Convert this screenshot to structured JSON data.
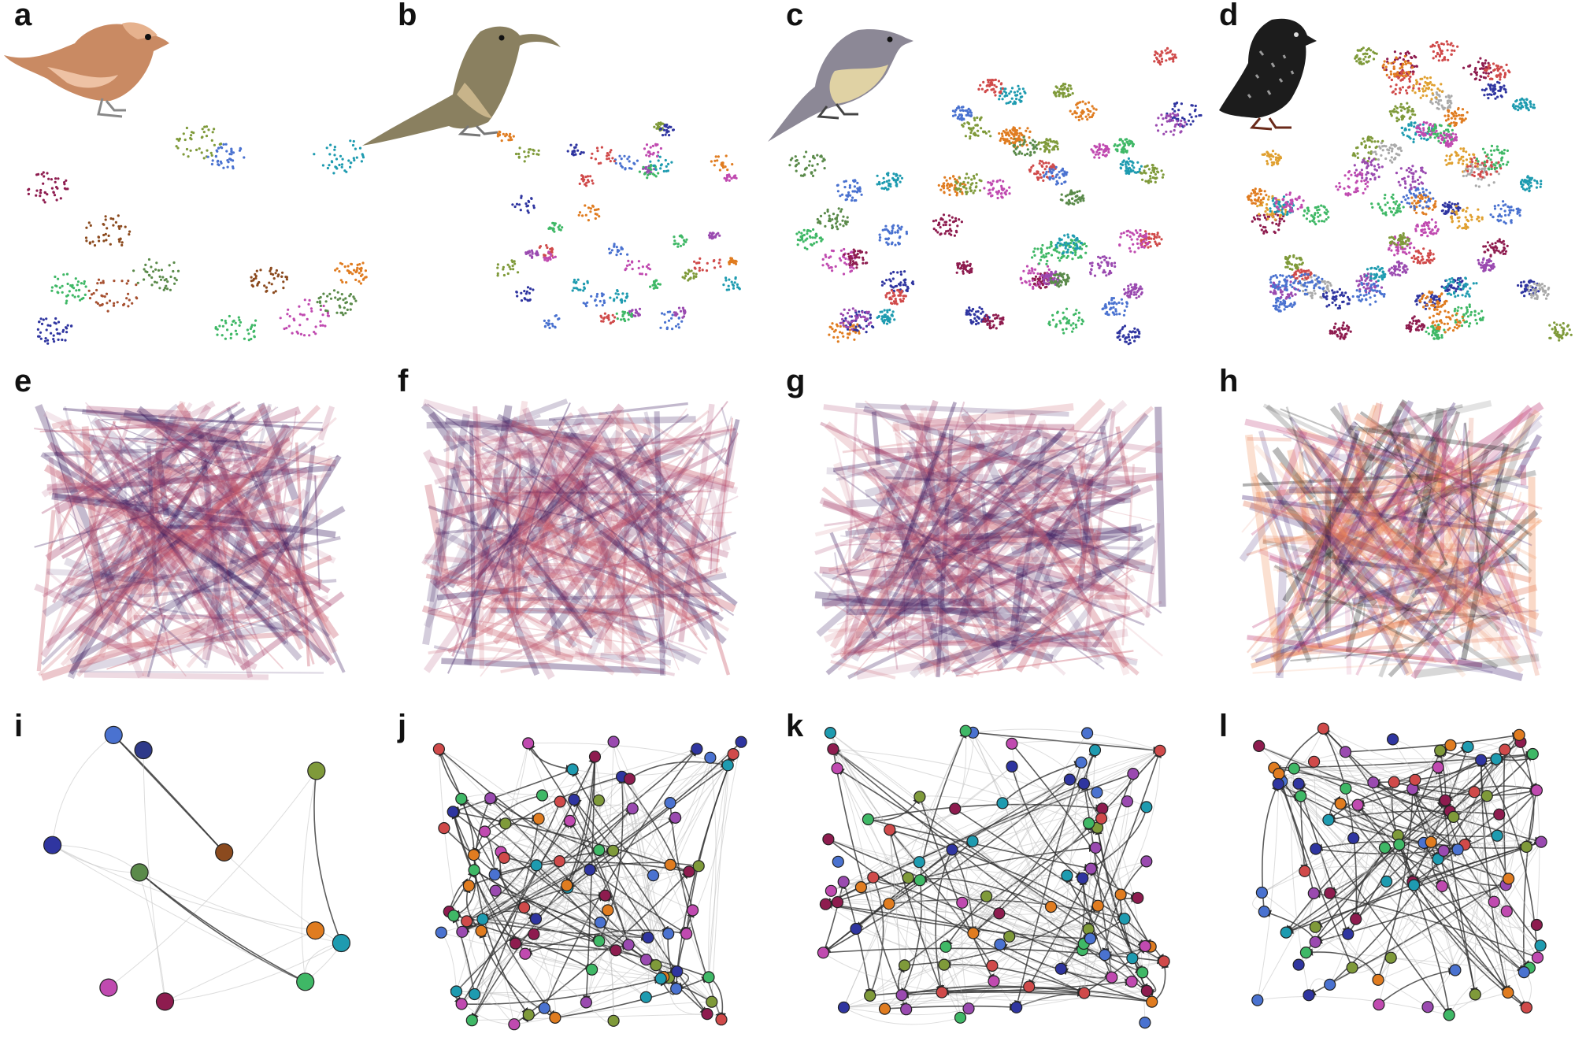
{
  "figure": {
    "panels": [
      {
        "letter": "a",
        "kind": "embedding",
        "bird": "finch",
        "bird_colors": [
          "#c98a63",
          "#eec2a4"
        ],
        "cluster_colors": [
          "#3fb866",
          "#5a8a4a",
          "#8b4a1e",
          "#8e1c4f",
          "#2f35a0",
          "#7f9a3a",
          "#4a72d0",
          "#1e9bb0",
          "#c04ab0",
          "#e07c20",
          "#a65030"
        ]
      },
      {
        "letter": "b",
        "kind": "embedding",
        "bird": "thrasher",
        "bird_colors": [
          "#8a8060",
          "#c8b48a"
        ],
        "cluster_colors": [
          "#3fb866",
          "#d04a4a",
          "#4a72d0",
          "#9a4ab0",
          "#7f9a3a",
          "#1e9bb0",
          "#c04ab0",
          "#e07c20",
          "#2f35a0"
        ]
      },
      {
        "letter": "c",
        "kind": "embedding",
        "bird": "warbler",
        "bird_colors": [
          "#8c8896",
          "#e0d2a4"
        ],
        "cluster_colors": [
          "#3fb866",
          "#2f35a0",
          "#8e1c4f",
          "#7f9a3a",
          "#1e9bb0",
          "#c04ab0",
          "#e07c20",
          "#d04a4a",
          "#4a72d0",
          "#9a4ab0",
          "#5a8a4a"
        ]
      },
      {
        "letter": "d",
        "kind": "embedding",
        "bird": "starling",
        "bird_colors": [
          "#1c1c1c",
          "#9a9a9a"
        ],
        "cluster_colors": [
          "#3fb866",
          "#2f35a0",
          "#8e1c4f",
          "#7f9a3a",
          "#1e9bb0",
          "#c04ab0",
          "#e07c20",
          "#d04a4a",
          "#4a72d0",
          "#9a4ab0",
          "#e0a030",
          "#aaaaaa"
        ]
      },
      {
        "letter": "e",
        "kind": "trajectory",
        "palette": [
          "#a8446e",
          "#c85a6a",
          "#3a1a5e"
        ]
      },
      {
        "letter": "f",
        "kind": "trajectory",
        "palette": [
          "#a8446e",
          "#c85a6a",
          "#3a1a5e"
        ]
      },
      {
        "letter": "g",
        "kind": "trajectory",
        "palette": [
          "#a8446e",
          "#c85a6a",
          "#3a1a5e"
        ]
      },
      {
        "letter": "h",
        "kind": "trajectory",
        "palette": [
          "#f0905a",
          "#e07050",
          "#c0407a",
          "#3a1a6e",
          "#1a1a1a"
        ]
      },
      {
        "letter": "i",
        "kind": "network",
        "node_colors": [
          "#3fb866",
          "#5a8a4a",
          "#8e1c4f",
          "#7f9a3a",
          "#8b4a1e",
          "#2f35a0",
          "#4a72d0",
          "#1e9bb0",
          "#c04ab0",
          "#e07c20",
          "#2f3a8a"
        ]
      },
      {
        "letter": "j",
        "kind": "network",
        "node_colors": [
          "#3fb866",
          "#d04a4a",
          "#4a72d0",
          "#9a4ab0",
          "#7f9a3a",
          "#1e9bb0",
          "#c04ab0",
          "#e07c20",
          "#2f35a0",
          "#8e1c4f"
        ]
      },
      {
        "letter": "k",
        "kind": "network",
        "node_colors": [
          "#3fb866",
          "#2f35a0",
          "#8e1c4f",
          "#7f9a3a",
          "#1e9bb0",
          "#c04ab0",
          "#e07c20",
          "#d04a4a",
          "#4a72d0",
          "#9a4ab0"
        ]
      },
      {
        "letter": "l",
        "kind": "network",
        "node_colors": [
          "#3fb866",
          "#2f35a0",
          "#8e1c4f",
          "#7f9a3a",
          "#1e9bb0",
          "#c04ab0",
          "#e07c20",
          "#d04a4a",
          "#4a72d0",
          "#9a4ab0"
        ]
      }
    ]
  }
}
